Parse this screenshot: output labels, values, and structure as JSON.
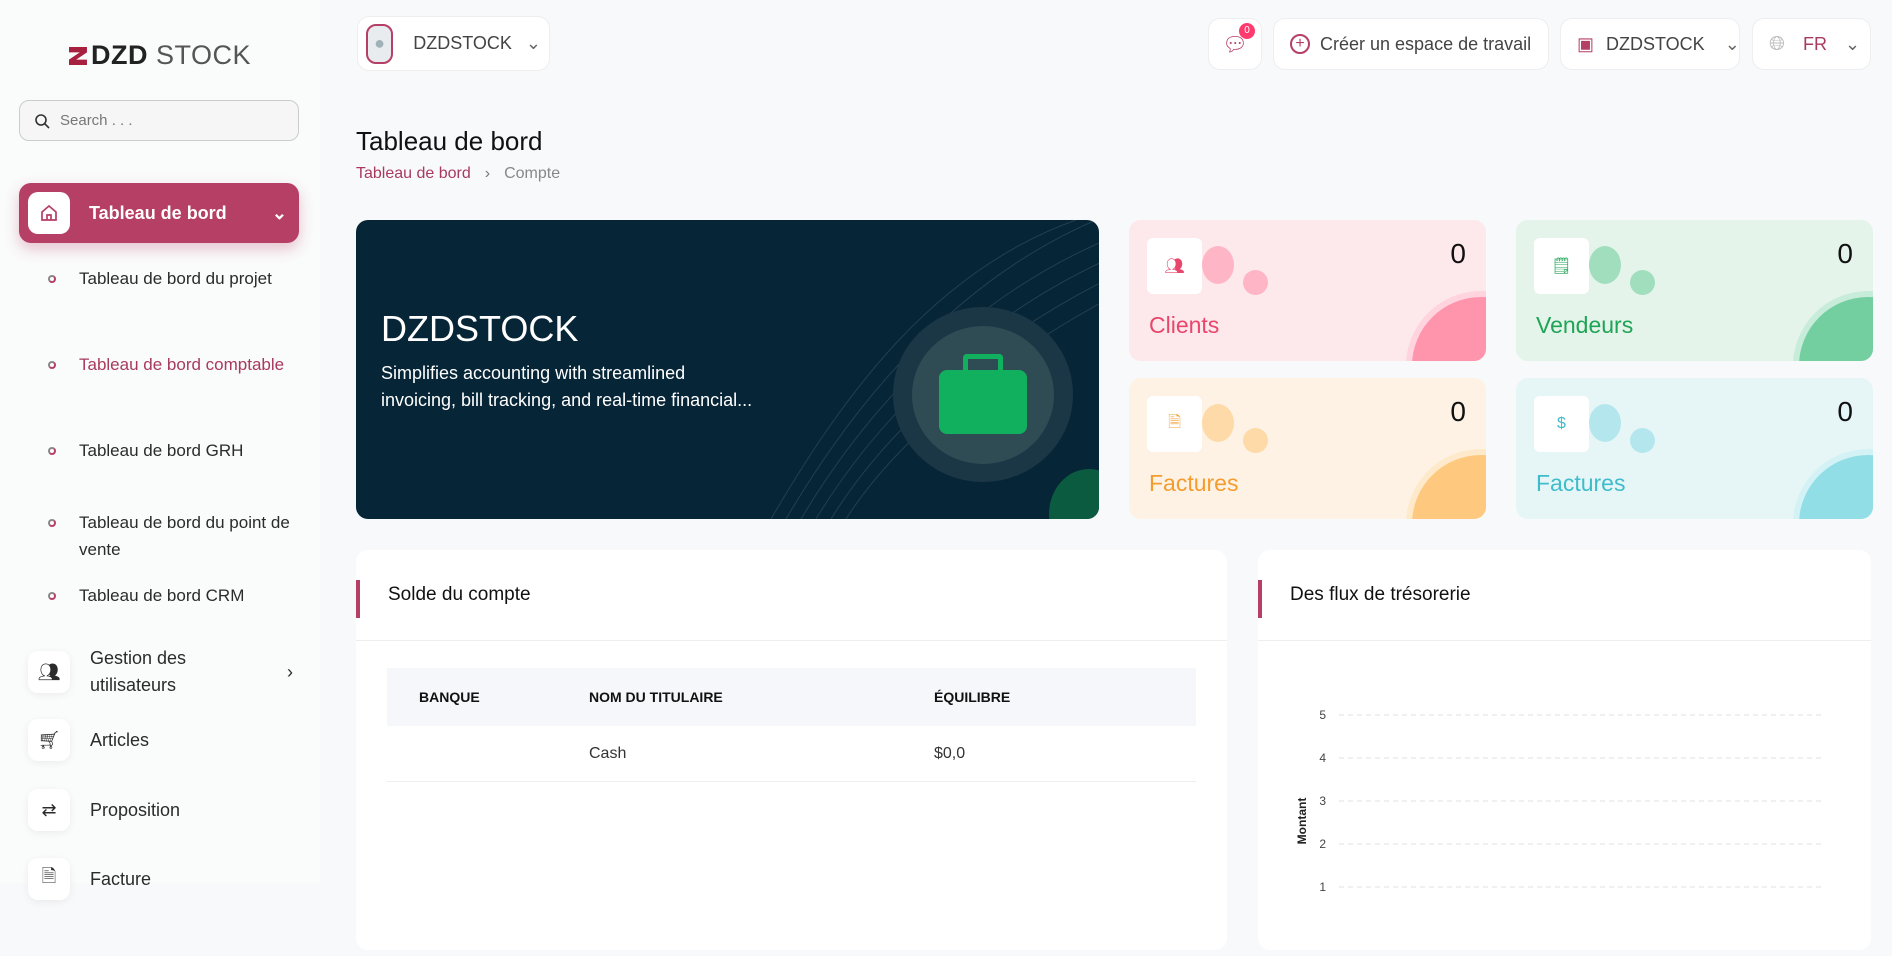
{
  "logo": {
    "text": "DZD STOCK",
    "bold": "DZD",
    "light": "STOCK"
  },
  "search": {
    "placeholder": "Search . . ."
  },
  "sidebar": {
    "active": {
      "label": "Tableau de bord"
    },
    "sub_items": [
      {
        "label": "Tableau de bord du projet"
      },
      {
        "label": "Tableau de bord comptable",
        "current": true
      },
      {
        "label": "Tableau de bord GRH"
      },
      {
        "label": "Tableau de bord du point de vente"
      },
      {
        "label": "Tableau de bord CRM"
      }
    ],
    "items": [
      {
        "label": "Gestion des utilisateurs",
        "icon": "users-icon"
      },
      {
        "label": "Articles",
        "icon": "cart-icon"
      },
      {
        "label": "Proposition",
        "icon": "swap-icon"
      },
      {
        "label": "Facture",
        "icon": "file-icon"
      }
    ]
  },
  "topbar": {
    "user": "DZDSTOCK",
    "messages_badge": "0",
    "create_workspace": "Créer un espace de travail",
    "workspace": "DZDSTOCK",
    "language": "FR"
  },
  "page": {
    "title": "Tableau de bord",
    "breadcrumb": [
      "Tableau de bord",
      "Compte"
    ]
  },
  "banner": {
    "title": "DZDSTOCK",
    "text": "Simplifies accounting with streamlined invoicing, bill tracking, and real-time financial..."
  },
  "stats": [
    {
      "label": "Clients",
      "value": "0",
      "color": "#e8466b",
      "bg": "#fde8ec",
      "accent": "#ff94ad"
    },
    {
      "label": "Vendeurs",
      "value": "0",
      "color": "#1fa456",
      "bg": "#e4f4ea",
      "accent": "#74cfa0"
    },
    {
      "label": "Factures",
      "value": "0",
      "color": "#f59c2f",
      "bg": "#fdf2e4",
      "accent": "#fec97e"
    },
    {
      "label": "Factures",
      "value": "0",
      "color": "#3fbccb",
      "bg": "#e6f6f7",
      "accent": "#92dee6"
    }
  ],
  "account_panel": {
    "title": "Solde du compte",
    "columns": [
      "BANQUE",
      "NOM DU TITULAIRE",
      "ÉQUILIBRE"
    ],
    "rows": [
      [
        "",
        "Cash",
        "$0,0"
      ]
    ]
  },
  "chart_data": {
    "type": "line",
    "title": "Des flux de trésorerie",
    "ylabel": "Montant",
    "yticks": [
      "5",
      "4",
      "3",
      "2",
      "1"
    ],
    "grid": true,
    "series": []
  }
}
